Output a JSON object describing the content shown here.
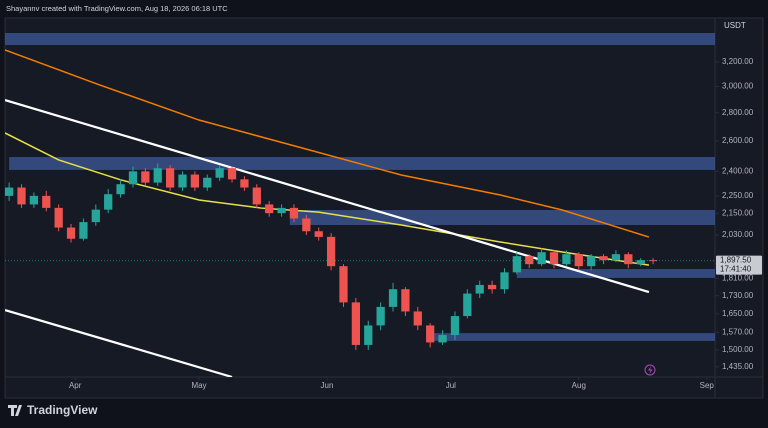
{
  "header": "Shayannv created with TradingView.com, Aug 18, 2026 06:18 UTC",
  "brand": "TradingView",
  "chart_data": {
    "type": "candlestick",
    "currency": "USDT",
    "log_scale": true,
    "up_color": "#26a69a",
    "down_color": "#ef5350",
    "x": [
      1,
      4,
      7,
      10,
      13,
      16,
      19,
      22,
      25,
      28,
      31,
      34,
      37,
      40,
      43,
      46,
      49,
      52,
      55,
      58,
      61,
      64,
      67,
      70,
      73,
      76,
      79,
      82,
      85,
      88,
      91,
      94,
      97,
      100,
      103,
      106,
      109,
      112,
      115,
      118,
      121,
      124,
      127,
      130,
      133,
      136,
      139,
      142,
      145,
      148,
      151,
      154,
      157
    ],
    "open": [
      2250,
      2300,
      2200,
      2250,
      2180,
      2070,
      2010,
      2100,
      2170,
      2260,
      2320,
      2400,
      2330,
      2420,
      2300,
      2380,
      2300,
      2360,
      2420,
      2350,
      2300,
      2200,
      2150,
      2180,
      2120,
      2050,
      2020,
      1870,
      1700,
      1520,
      1600,
      1680,
      1760,
      1660,
      1600,
      1530,
      1560,
      1640,
      1740,
      1780,
      1760,
      1840,
      1920,
      1880,
      1940,
      1880,
      1930,
      1870,
      1920,
      1900,
      1930,
      1880,
      1900
    ],
    "high": [
      2330,
      2320,
      2270,
      2280,
      2200,
      2090,
      2120,
      2200,
      2290,
      2350,
      2430,
      2420,
      2450,
      2440,
      2400,
      2400,
      2380,
      2440,
      2430,
      2370,
      2320,
      2220,
      2200,
      2200,
      2140,
      2070,
      2040,
      1880,
      1720,
      1620,
      1700,
      1790,
      1770,
      1680,
      1610,
      1580,
      1660,
      1760,
      1800,
      1800,
      1860,
      1940,
      1930,
      1960,
      1950,
      1950,
      1940,
      1930,
      1930,
      1950,
      1940,
      1910,
      1910
    ],
    "low": [
      2220,
      2180,
      2180,
      2160,
      2050,
      1990,
      2000,
      2080,
      2150,
      2240,
      2300,
      2310,
      2310,
      2280,
      2280,
      2280,
      2280,
      2340,
      2330,
      2280,
      2180,
      2130,
      2130,
      2100,
      2030,
      2000,
      1850,
      1680,
      1500,
      1500,
      1580,
      1660,
      1640,
      1580,
      1510,
      1520,
      1540,
      1630,
      1720,
      1740,
      1740,
      1830,
      1860,
      1870,
      1860,
      1870,
      1850,
      1850,
      1880,
      1890,
      1860,
      1870,
      1880
    ],
    "close": [
      2300,
      2200,
      2250,
      2180,
      2070,
      2010,
      2100,
      2170,
      2260,
      2320,
      2400,
      2330,
      2420,
      2300,
      2380,
      2300,
      2360,
      2420,
      2350,
      2300,
      2200,
      2150,
      2180,
      2120,
      2050,
      2020,
      1870,
      1700,
      1520,
      1600,
      1680,
      1760,
      1660,
      1600,
      1530,
      1560,
      1640,
      1740,
      1780,
      1760,
      1840,
      1920,
      1880,
      1940,
      1880,
      1930,
      1870,
      1920,
      1900,
      1930,
      1880,
      1900,
      1897.5
    ],
    "xlim": [
      0,
      172
    ],
    "xticks": [
      {
        "value": 17,
        "label": "Apr"
      },
      {
        "value": 47,
        "label": "May"
      },
      {
        "value": 78,
        "label": "Jun"
      },
      {
        "value": 108,
        "label": "Jul"
      },
      {
        "value": 139,
        "label": "Aug"
      },
      {
        "value": 170,
        "label": "Sep"
      }
    ],
    "ylim": [
      1397,
      3593
    ],
    "yticks": [
      {
        "value": 3200,
        "label": "3,200.00"
      },
      {
        "value": 3000,
        "label": "3,000.00"
      },
      {
        "value": 2800,
        "label": "2,800.00"
      },
      {
        "value": 2600,
        "label": "2,600.00"
      },
      {
        "value": 2400,
        "label": "2,400.00"
      },
      {
        "value": 2250,
        "label": "2,250.00"
      },
      {
        "value": 2150,
        "label": "2,150.00"
      },
      {
        "value": 2030,
        "label": "2,030.00"
      },
      {
        "value": 1810,
        "label": "1,810.00"
      },
      {
        "value": 1730,
        "label": "1,730.00"
      },
      {
        "value": 1650,
        "label": "1,650.00"
      },
      {
        "value": 1570,
        "label": "1,570.00"
      },
      {
        "value": 1500,
        "label": "1,500.00"
      },
      {
        "value": 1435,
        "label": "1,435.00"
      }
    ],
    "last_price": {
      "value": 1897.5,
      "label": "1,897.50"
    },
    "countdown": "17:41:40",
    "zones": [
      {
        "x_from": 0,
        "range": [
          3346,
          3454
        ]
      },
      {
        "x_from": 1,
        "range": [
          2409,
          2492
        ]
      },
      {
        "x_from": 69,
        "range": [
          2084,
          2168
        ]
      },
      {
        "x_from": 124,
        "range": [
          1813,
          1856
        ]
      },
      {
        "x_from": 103,
        "range": [
          1536,
          1568
        ]
      }
    ],
    "lines": [
      {
        "color": "#f57c00",
        "x": [
          0,
          23,
          47,
          72,
          96,
          120,
          135,
          156
        ],
        "values": [
          3303,
          3012,
          2747,
          2552,
          2377,
          2255,
          2168,
          2019
        ]
      },
      {
        "color": "#e8e04a",
        "x": [
          0,
          13,
          28,
          47,
          62,
          76,
          96,
          120,
          135,
          156
        ],
        "values": [
          2655,
          2473,
          2347,
          2226,
          2179,
          2156,
          2084,
          1993,
          1941,
          1875
        ]
      },
      {
        "color": "#ffffff",
        "x": [
          0,
          156
        ],
        "values": [
          2895,
          1747
        ]
      },
      {
        "color": "#ffffff",
        "x": [
          0,
          55
        ],
        "values": [
          1666,
          1397
        ]
      }
    ]
  }
}
